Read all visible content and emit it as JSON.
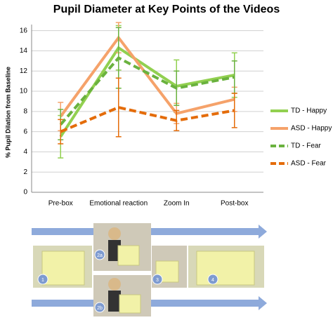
{
  "chart_data": {
    "type": "line",
    "title": "Pupil Diameter at Key Points of the Videos",
    "y_label": "% Pupil Dilation from Baseline",
    "categories": [
      "Pre-box",
      "Emotional reaction",
      "Zoom In",
      "Post-box"
    ],
    "series": [
      {
        "name": "TD - Happy",
        "color": "#92d050",
        "dash": false,
        "values": [
          5.5,
          14.3,
          10.5,
          11.6
        ],
        "errors": [
          2.1,
          2.2,
          2.6,
          2.2
        ]
      },
      {
        "name": "ASD - Happy",
        "color": "#f5a26a",
        "dash": false,
        "values": [
          7.5,
          15.3,
          7.8,
          9.2
        ],
        "errors": [
          1.4,
          1.5,
          1.0,
          1.2
        ]
      },
      {
        "name": "TD - Fear",
        "color": "#6ab23e",
        "dash": true,
        "values": [
          6.7,
          13.3,
          10.3,
          11.4
        ],
        "errors": [
          1.5,
          3.0,
          1.7,
          1.6
        ]
      },
      {
        "name": "ASD - Fear",
        "color": "#e46c0a",
        "dash": true,
        "values": [
          6.0,
          8.4,
          7.1,
          8.1
        ],
        "errors": [
          1.2,
          2.9,
          1.0,
          1.7
        ]
      }
    ],
    "ylim": [
      0,
      16.6
    ],
    "yticks": [
      0,
      2,
      4,
      6,
      8,
      10,
      12,
      14,
      16
    ],
    "grid": true,
    "legend": "right"
  },
  "figure": {
    "panel_labels": [
      "1",
      "2a",
      "2b",
      "3",
      "4"
    ]
  }
}
